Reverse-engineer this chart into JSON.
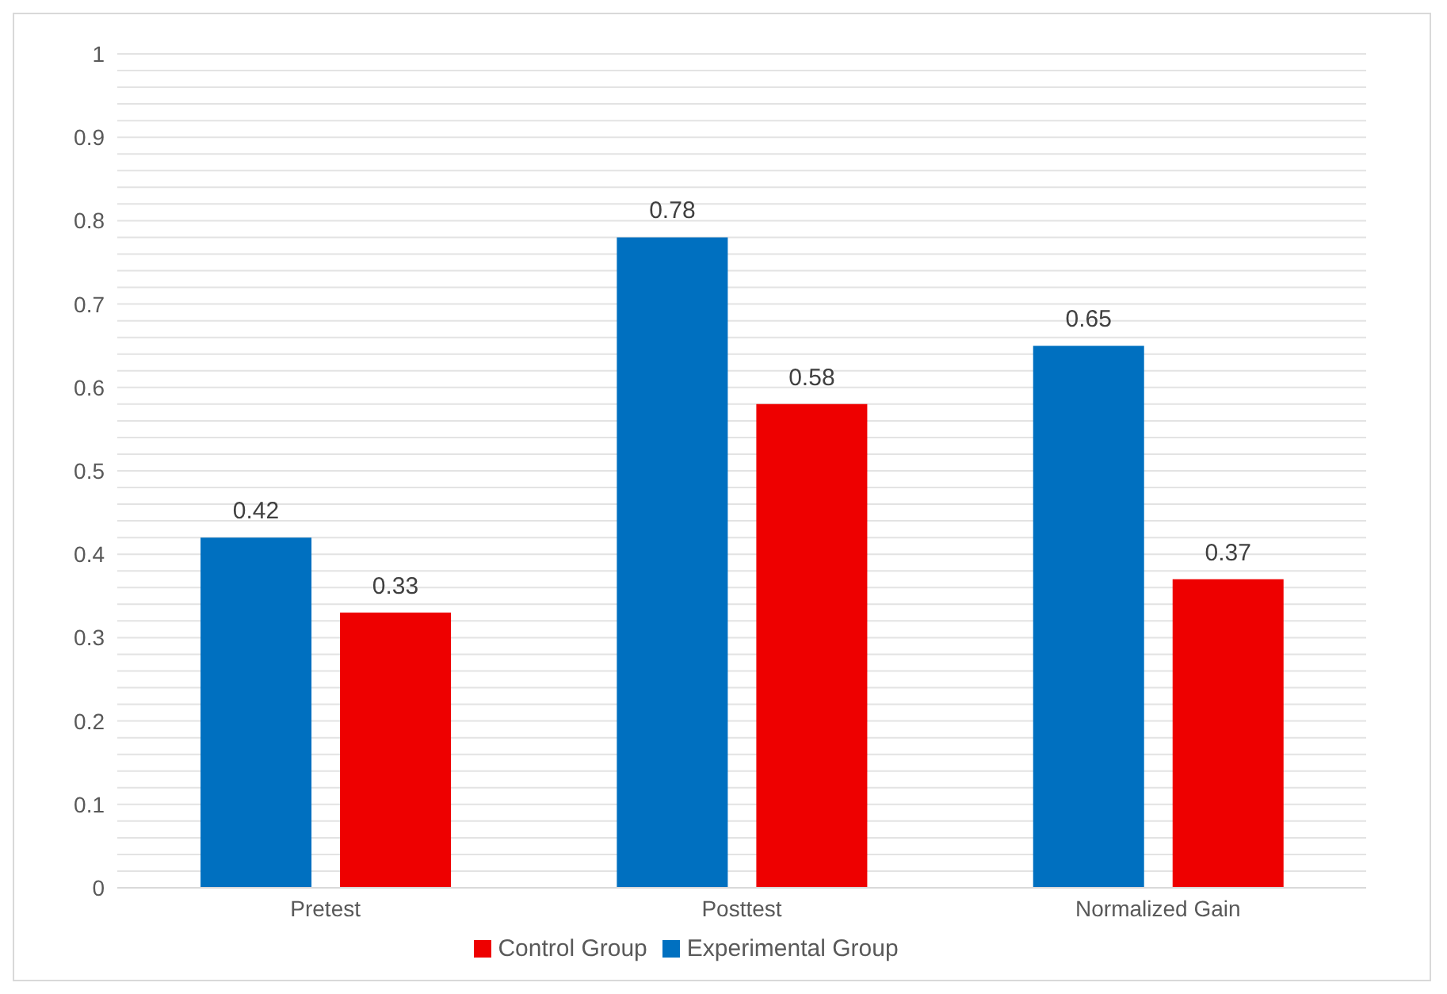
{
  "chart_data": {
    "type": "bar",
    "categories": [
      "Pretest",
      "Posttest",
      "Normalized Gain"
    ],
    "series": [
      {
        "name": "Experimental Group",
        "color": "#0070c0",
        "values": [
          0.42,
          0.78,
          0.65
        ]
      },
      {
        "name": "Control Group",
        "color": "#ee0000",
        "values": [
          0.33,
          0.58,
          0.37
        ]
      }
    ],
    "ylim": [
      0,
      1
    ],
    "yticks": [
      0,
      {
        "value": 0.02,
        "label": null
      },
      {
        "value": 0.04,
        "label": null
      },
      {
        "value": 0.06,
        "label": null
      },
      {
        "value": 0.08,
        "label": null
      },
      0.1,
      {
        "value": 0.12,
        "label": null
      },
      {
        "value": 0.14,
        "label": null
      },
      {
        "value": 0.16,
        "label": null
      },
      {
        "value": 0.18,
        "label": null
      },
      0.2,
      {
        "value": 0.22,
        "label": null
      },
      {
        "value": 0.24,
        "label": null
      },
      {
        "value": 0.26,
        "label": null
      },
      {
        "value": 0.28,
        "label": null
      },
      0.3,
      {
        "value": 0.32,
        "label": null
      },
      {
        "value": 0.34,
        "label": null
      },
      {
        "value": 0.36,
        "label": null
      },
      {
        "value": 0.38,
        "label": null
      },
      0.4,
      {
        "value": 0.42,
        "label": null
      },
      {
        "value": 0.44,
        "label": null
      },
      {
        "value": 0.46,
        "label": null
      },
      {
        "value": 0.48,
        "label": null
      },
      0.5,
      {
        "value": 0.52,
        "label": null
      },
      {
        "value": 0.54,
        "label": null
      },
      {
        "value": 0.56,
        "label": null
      },
      {
        "value": 0.58,
        "label": null
      },
      0.6,
      {
        "value": 0.62,
        "label": null
      },
      {
        "value": 0.64,
        "label": null
      },
      {
        "value": 0.66,
        "label": null
      },
      {
        "value": 0.68,
        "label": null
      },
      0.7,
      {
        "value": 0.72,
        "label": null
      },
      {
        "value": 0.74,
        "label": null
      },
      {
        "value": 0.76,
        "label": null
      },
      {
        "value": 0.78,
        "label": null
      },
      0.8,
      {
        "value": 0.82,
        "label": null
      },
      {
        "value": 0.84,
        "label": null
      },
      {
        "value": 0.86,
        "label": null
      },
      {
        "value": 0.88,
        "label": null
      },
      0.9,
      {
        "value": 0.92,
        "label": null
      },
      {
        "value": 0.94,
        "label": null
      },
      {
        "value": 0.96,
        "label": null
      },
      {
        "value": 0.98,
        "label": null
      },
      1
    ],
    "grid": "y",
    "legend": "bottom",
    "data_labels": true
  }
}
